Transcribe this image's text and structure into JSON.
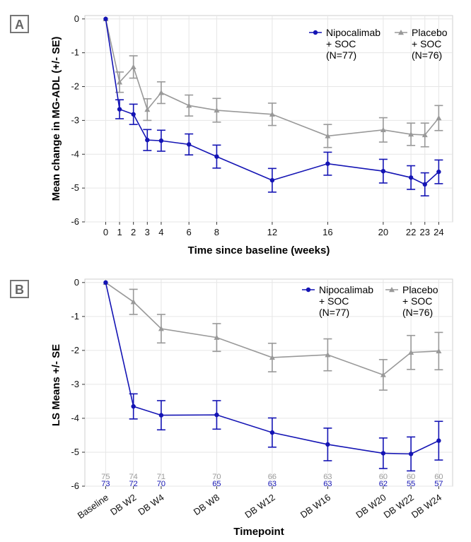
{
  "colors": {
    "nipo": "#1414b4",
    "placebo": "#999999",
    "grid": "#e6e6e6",
    "panel_label": "#777777"
  },
  "chart_data": [
    {
      "panel": "A",
      "type": "line",
      "xlabel": "Time since baseline (weeks)",
      "ylabel": "Mean change in MG-ADL (+/- SE)",
      "xlim": [
        -1.5,
        25
      ],
      "ylim": [
        -6,
        0.1
      ],
      "x_ticks": [
        0,
        1,
        2,
        3,
        4,
        6,
        8,
        12,
        16,
        20,
        22,
        23,
        24
      ],
      "y_ticks": [
        0,
        -1,
        -2,
        -3,
        -4,
        -5,
        -6
      ],
      "y_tick_labels": [
        "0",
        "-1",
        "-2",
        "-3",
        "-4",
        "-5",
        "-6"
      ],
      "series": [
        {
          "key": "nipo",
          "name": "Nipocalimab",
          "legend_lines": [
            "Nipocalimab",
            "+ SOC",
            "(N=77)"
          ],
          "marker": "circle",
          "x": [
            0,
            1,
            2,
            3,
            4,
            6,
            8,
            12,
            16,
            20,
            22,
            23,
            24
          ],
          "y": [
            0,
            -2.67,
            -2.82,
            -3.58,
            -3.6,
            -3.71,
            -4.07,
            -4.77,
            -4.28,
            -4.5,
            -4.69,
            -4.89,
            -4.52
          ],
          "se": [
            0,
            0.28,
            0.3,
            0.31,
            0.31,
            0.31,
            0.34,
            0.35,
            0.34,
            0.35,
            0.35,
            0.34,
            0.35
          ]
        },
        {
          "key": "placebo",
          "name": "Placebo",
          "legend_lines": [
            "Placebo",
            "+ SOC",
            "(N=76)"
          ],
          "marker": "triangle",
          "x": [
            0,
            1,
            2,
            3,
            4,
            6,
            8,
            12,
            16,
            20,
            22,
            23,
            24
          ],
          "y": [
            0,
            -1.87,
            -1.42,
            -2.68,
            -2.18,
            -2.56,
            -2.7,
            -2.82,
            -3.46,
            -3.28,
            -3.41,
            -3.43,
            -2.93
          ],
          "se": [
            0,
            0.3,
            0.33,
            0.32,
            0.32,
            0.31,
            0.35,
            0.33,
            0.34,
            0.36,
            0.33,
            0.35,
            0.37
          ]
        }
      ]
    },
    {
      "panel": "B",
      "type": "line",
      "xlabel": "Timepoint",
      "ylabel": "LS Means +/- SE",
      "ylim": [
        -6,
        0.1
      ],
      "y_ticks": [
        0,
        -1,
        -2,
        -3,
        -4,
        -5,
        -6
      ],
      "y_tick_labels": [
        "0",
        "-1",
        "-2",
        "-3",
        "-4",
        "-5",
        "-6"
      ],
      "categories": [
        "Baseline",
        "DB W2",
        "DB W4",
        "DB W8",
        "DB W12",
        "DB W16",
        "DB W20",
        "DB W22",
        "DB W24"
      ],
      "x_positions": [
        0,
        2,
        4,
        8,
        12,
        16,
        20,
        22,
        24
      ],
      "xlim": [
        -1.5,
        25
      ],
      "series": [
        {
          "key": "nipo",
          "name": "Nipocalimab",
          "legend_lines": [
            "Nipocalimab",
            "+ SOC",
            "(N=77)"
          ],
          "marker": "circle",
          "y": [
            0,
            -3.65,
            -3.91,
            -3.9,
            -4.42,
            -4.77,
            -5.03,
            -5.05,
            -4.66
          ],
          "se": [
            0,
            0.37,
            0.43,
            0.42,
            0.43,
            0.48,
            0.45,
            0.5,
            0.57
          ],
          "counts": [
            "73",
            "72",
            "70",
            "65",
            "63",
            "63",
            "62",
            "55",
            "57"
          ]
        },
        {
          "key": "placebo",
          "name": "Placebo",
          "legend_lines": [
            "Placebo",
            "+ SOC",
            "(N=76)"
          ],
          "marker": "triangle",
          "y": [
            0,
            -0.57,
            -1.36,
            -1.62,
            -2.21,
            -2.13,
            -2.72,
            -2.06,
            -2.02
          ],
          "se": [
            0,
            0.37,
            0.42,
            0.41,
            0.42,
            0.47,
            0.45,
            0.5,
            0.55
          ],
          "counts": [
            "75",
            "74",
            "71",
            "70",
            "66",
            "63",
            "60",
            "60",
            "60"
          ]
        }
      ]
    }
  ]
}
